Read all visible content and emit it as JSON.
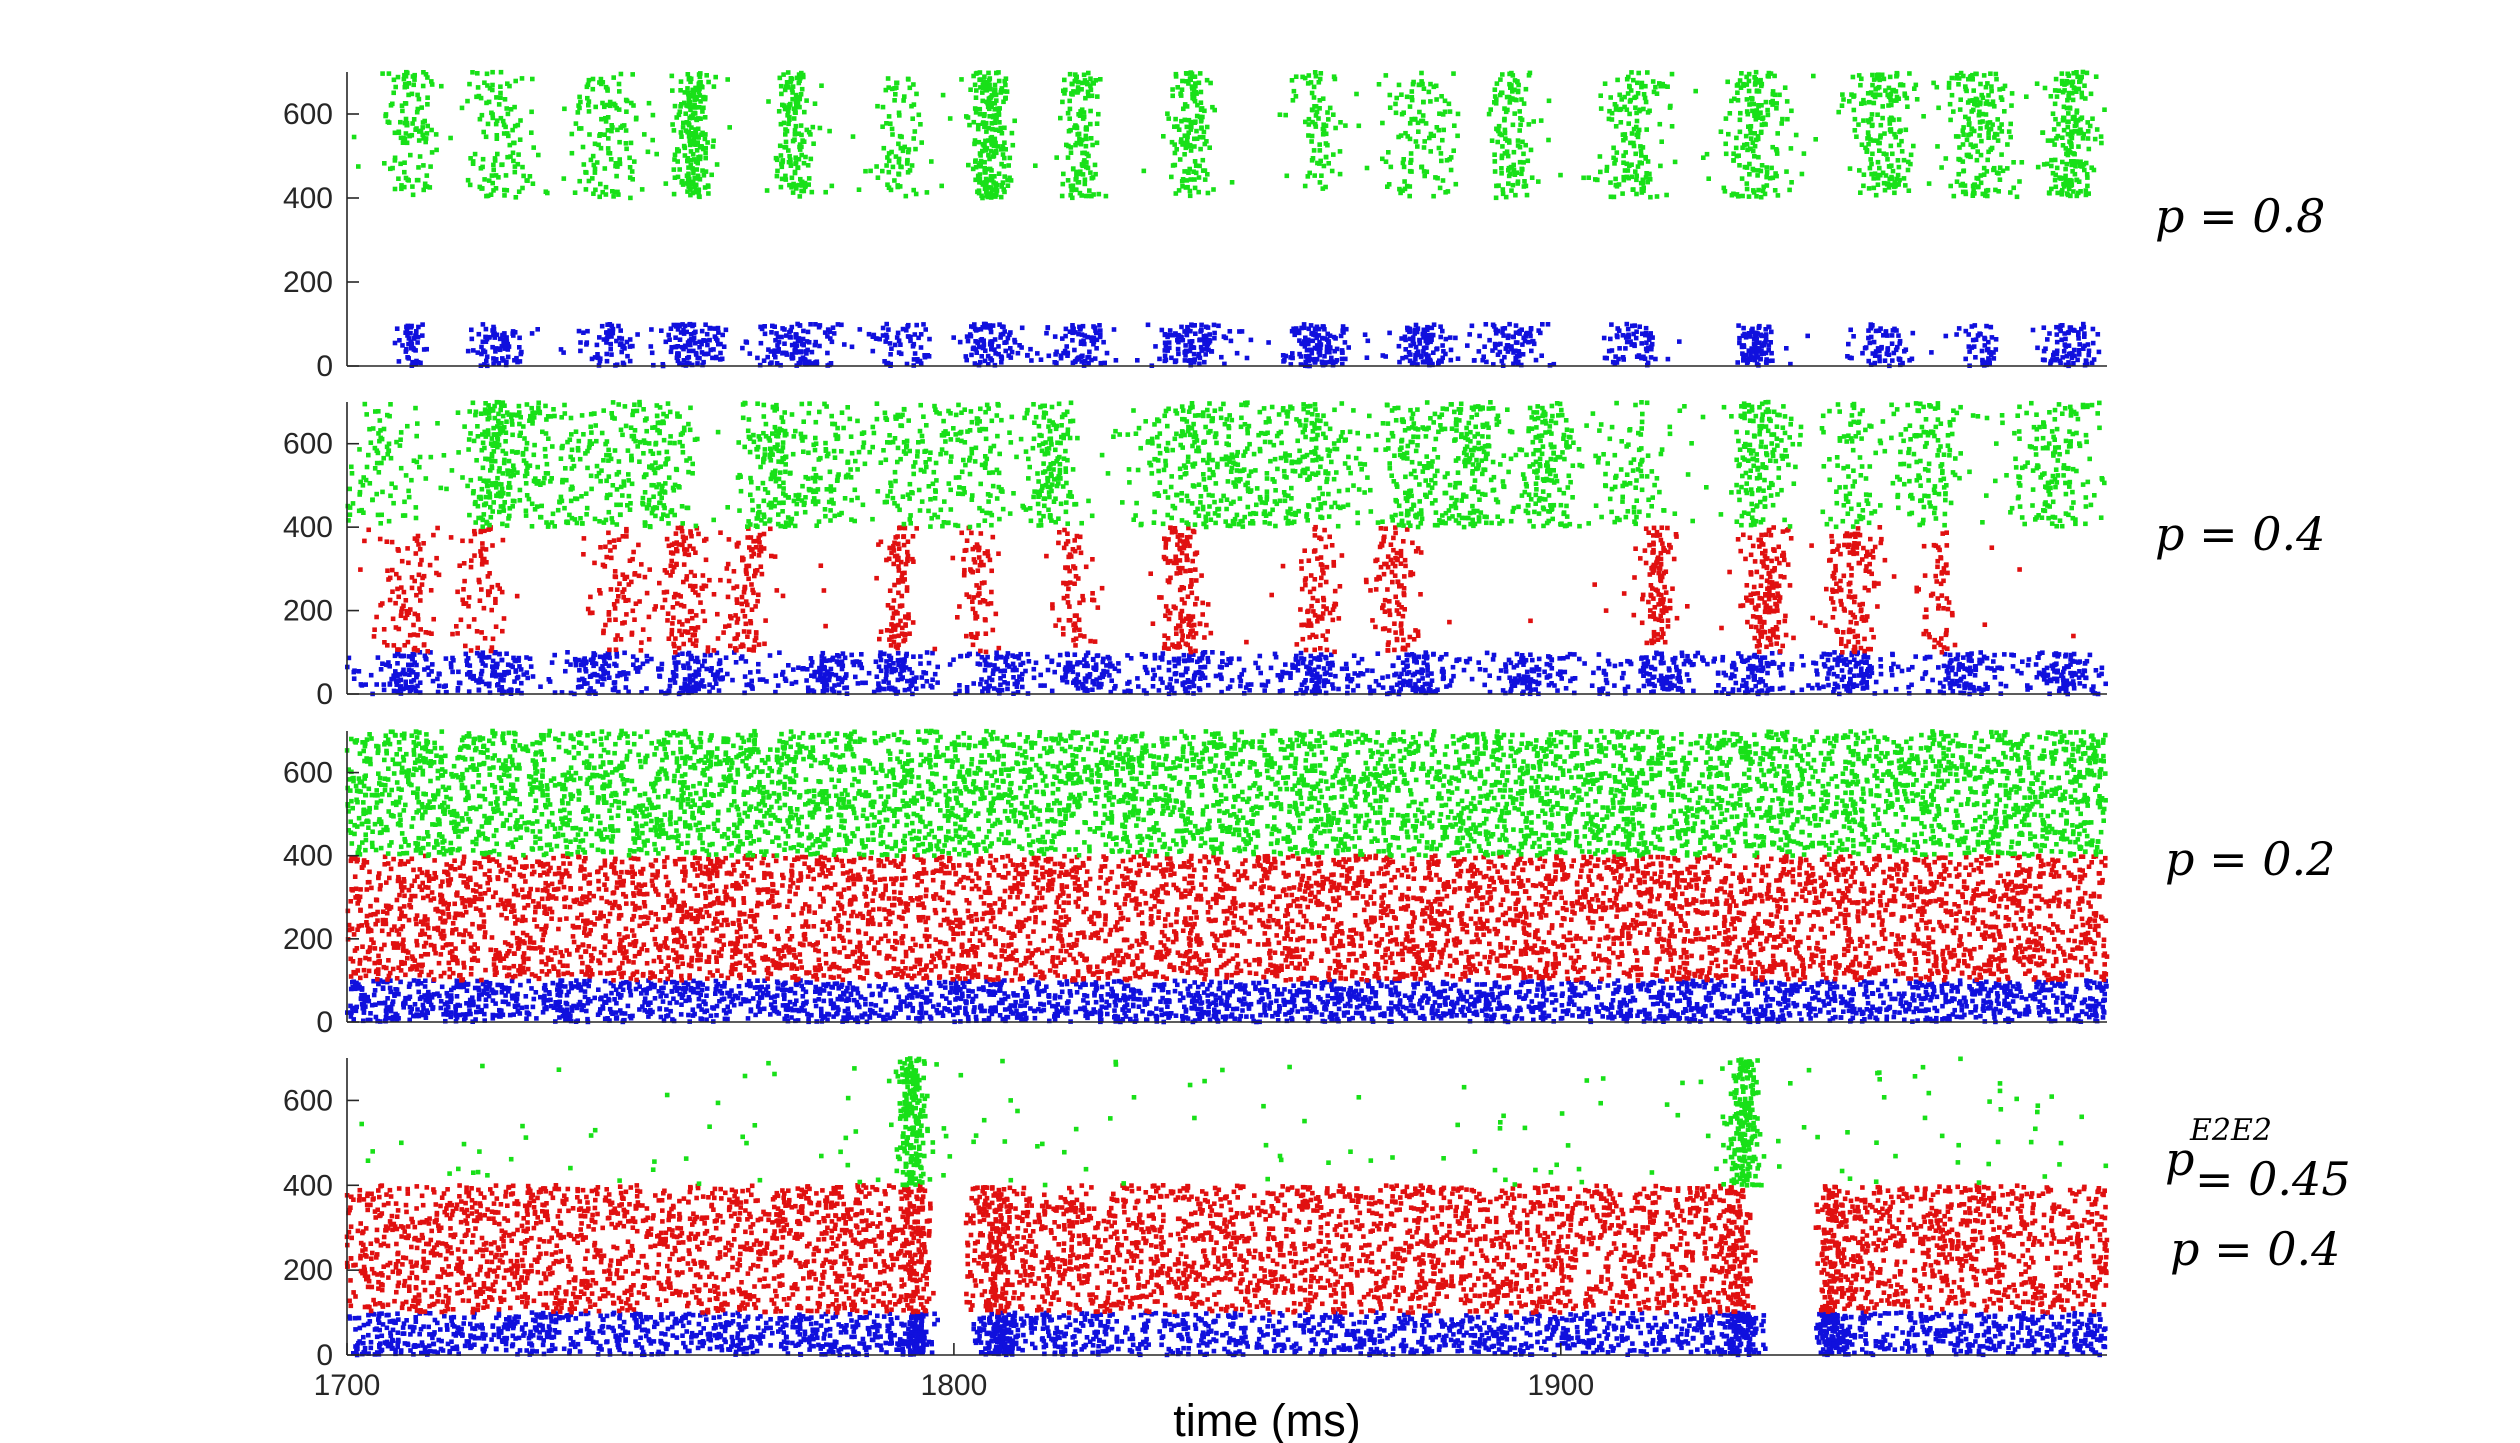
{
  "chart_data": [
    {
      "type": "scatter",
      "panel_label": "p = 0.8",
      "xlim": [
        1700,
        1990
      ],
      "ylim": [
        0,
        700
      ],
      "yticks": [
        0,
        200,
        400,
        600
      ],
      "xticks": [],
      "populations": [
        {
          "color": "#1010dd",
          "y_range": [
            0,
            100
          ],
          "pattern": "bursts",
          "burst_centers": [
            1711,
            1725,
            1743,
            1757,
            1774,
            1791,
            1806,
            1821,
            1839,
            1860,
            1877,
            1892,
            1912,
            1932,
            1953,
            1969,
            1984
          ],
          "burst_width": 6,
          "density": 90
        },
        {
          "color": "#18e018",
          "y_range": [
            400,
            700
          ],
          "pattern": "bursts",
          "burst_centers": [
            1711,
            1725,
            1743,
            1757,
            1774,
            1791,
            1806,
            1821,
            1839,
            1860,
            1877,
            1892,
            1912,
            1932,
            1953,
            1969,
            1984
          ],
          "burst_width": 6,
          "density": 160
        }
      ]
    },
    {
      "type": "scatter",
      "panel_label": "p = 0.4",
      "xlim": [
        1700,
        1990
      ],
      "ylim": [
        0,
        700
      ],
      "yticks": [
        0,
        200,
        400,
        600
      ],
      "xticks": [],
      "populations": [
        {
          "color": "#1010dd",
          "y_range": [
            0,
            100
          ],
          "pattern": "bursty",
          "burst_centers": [
            1710,
            1725,
            1741,
            1756,
            1779,
            1791,
            1808,
            1822,
            1839,
            1859,
            1876,
            1895,
            1917,
            1932,
            1948,
            1967,
            1983
          ],
          "burst_width": 7,
          "density": 300
        },
        {
          "color": "#e01010",
          "y_range": [
            100,
            400
          ],
          "pattern": "bursts",
          "burst_centers": [
            1710,
            1722,
            1745,
            1756,
            1766,
            1791,
            1804,
            1820,
            1838,
            1860,
            1873,
            1916,
            1934,
            1948,
            1962
          ],
          "burst_width": 5,
          "density": 110
        },
        {
          "color": "#18e018",
          "y_range": [
            400,
            700
          ],
          "pattern": "bursts",
          "burst_centers": [
            1705,
            1724,
            1732,
            1744,
            1752,
            1770,
            1779,
            1793,
            1804,
            1816,
            1838,
            1847,
            1859,
            1876,
            1886,
            1898,
            1912,
            1933,
            1948,
            1961,
            1982
          ],
          "burst_width": 9,
          "density": 130
        }
      ]
    },
    {
      "type": "scatter",
      "panel_label": "p = 0.2",
      "xlim": [
        1700,
        1990
      ],
      "ylim": [
        0,
        700
      ],
      "yticks": [
        0,
        200,
        400,
        600
      ],
      "xticks": [],
      "populations": [
        {
          "color": "#1010dd",
          "y_range": [
            0,
            100
          ],
          "pattern": "uniform",
          "density": 2600
        },
        {
          "color": "#e01010",
          "y_range": [
            100,
            400
          ],
          "pattern": "uniform",
          "density": 5200
        },
        {
          "color": "#18e018",
          "y_range": [
            400,
            700
          ],
          "pattern": "uniform",
          "density": 5200
        }
      ]
    },
    {
      "type": "scatter",
      "panel_label_lines": [
        "p",
        "E2E2",
        "= 0.45",
        "p = 0.4"
      ],
      "xlim": [
        1700,
        1990
      ],
      "ylim": [
        0,
        700
      ],
      "yticks": [
        0,
        200,
        400,
        600
      ],
      "xticks": [
        1700,
        1800,
        1900
      ],
      "xlabel": "time (ms)",
      "populations": [
        {
          "color": "#1010dd",
          "y_range": [
            0,
            100
          ],
          "pattern": "uniform_with_gaps",
          "gaps": [
            [
              1795,
              1803
            ],
            [
              1934,
              1942
            ]
          ],
          "bursts": [
            1794,
            1808,
            1930,
            1945
          ],
          "density": 2200
        },
        {
          "color": "#e01010",
          "y_range": [
            100,
            400
          ],
          "pattern": "uniform_with_gaps",
          "gaps": [
            [
              1796,
              1802
            ],
            [
              1931,
              1943
            ]
          ],
          "bursts": [
            1793,
            1807,
            1929,
            1945
          ],
          "density": 4600
        },
        {
          "color": "#18e018",
          "y_range": [
            400,
            700
          ],
          "pattern": "sparse_with_bursts",
          "bursts": [
            1793,
            1930
          ],
          "burst_width": 4,
          "density": 160
        }
      ]
    }
  ]
}
